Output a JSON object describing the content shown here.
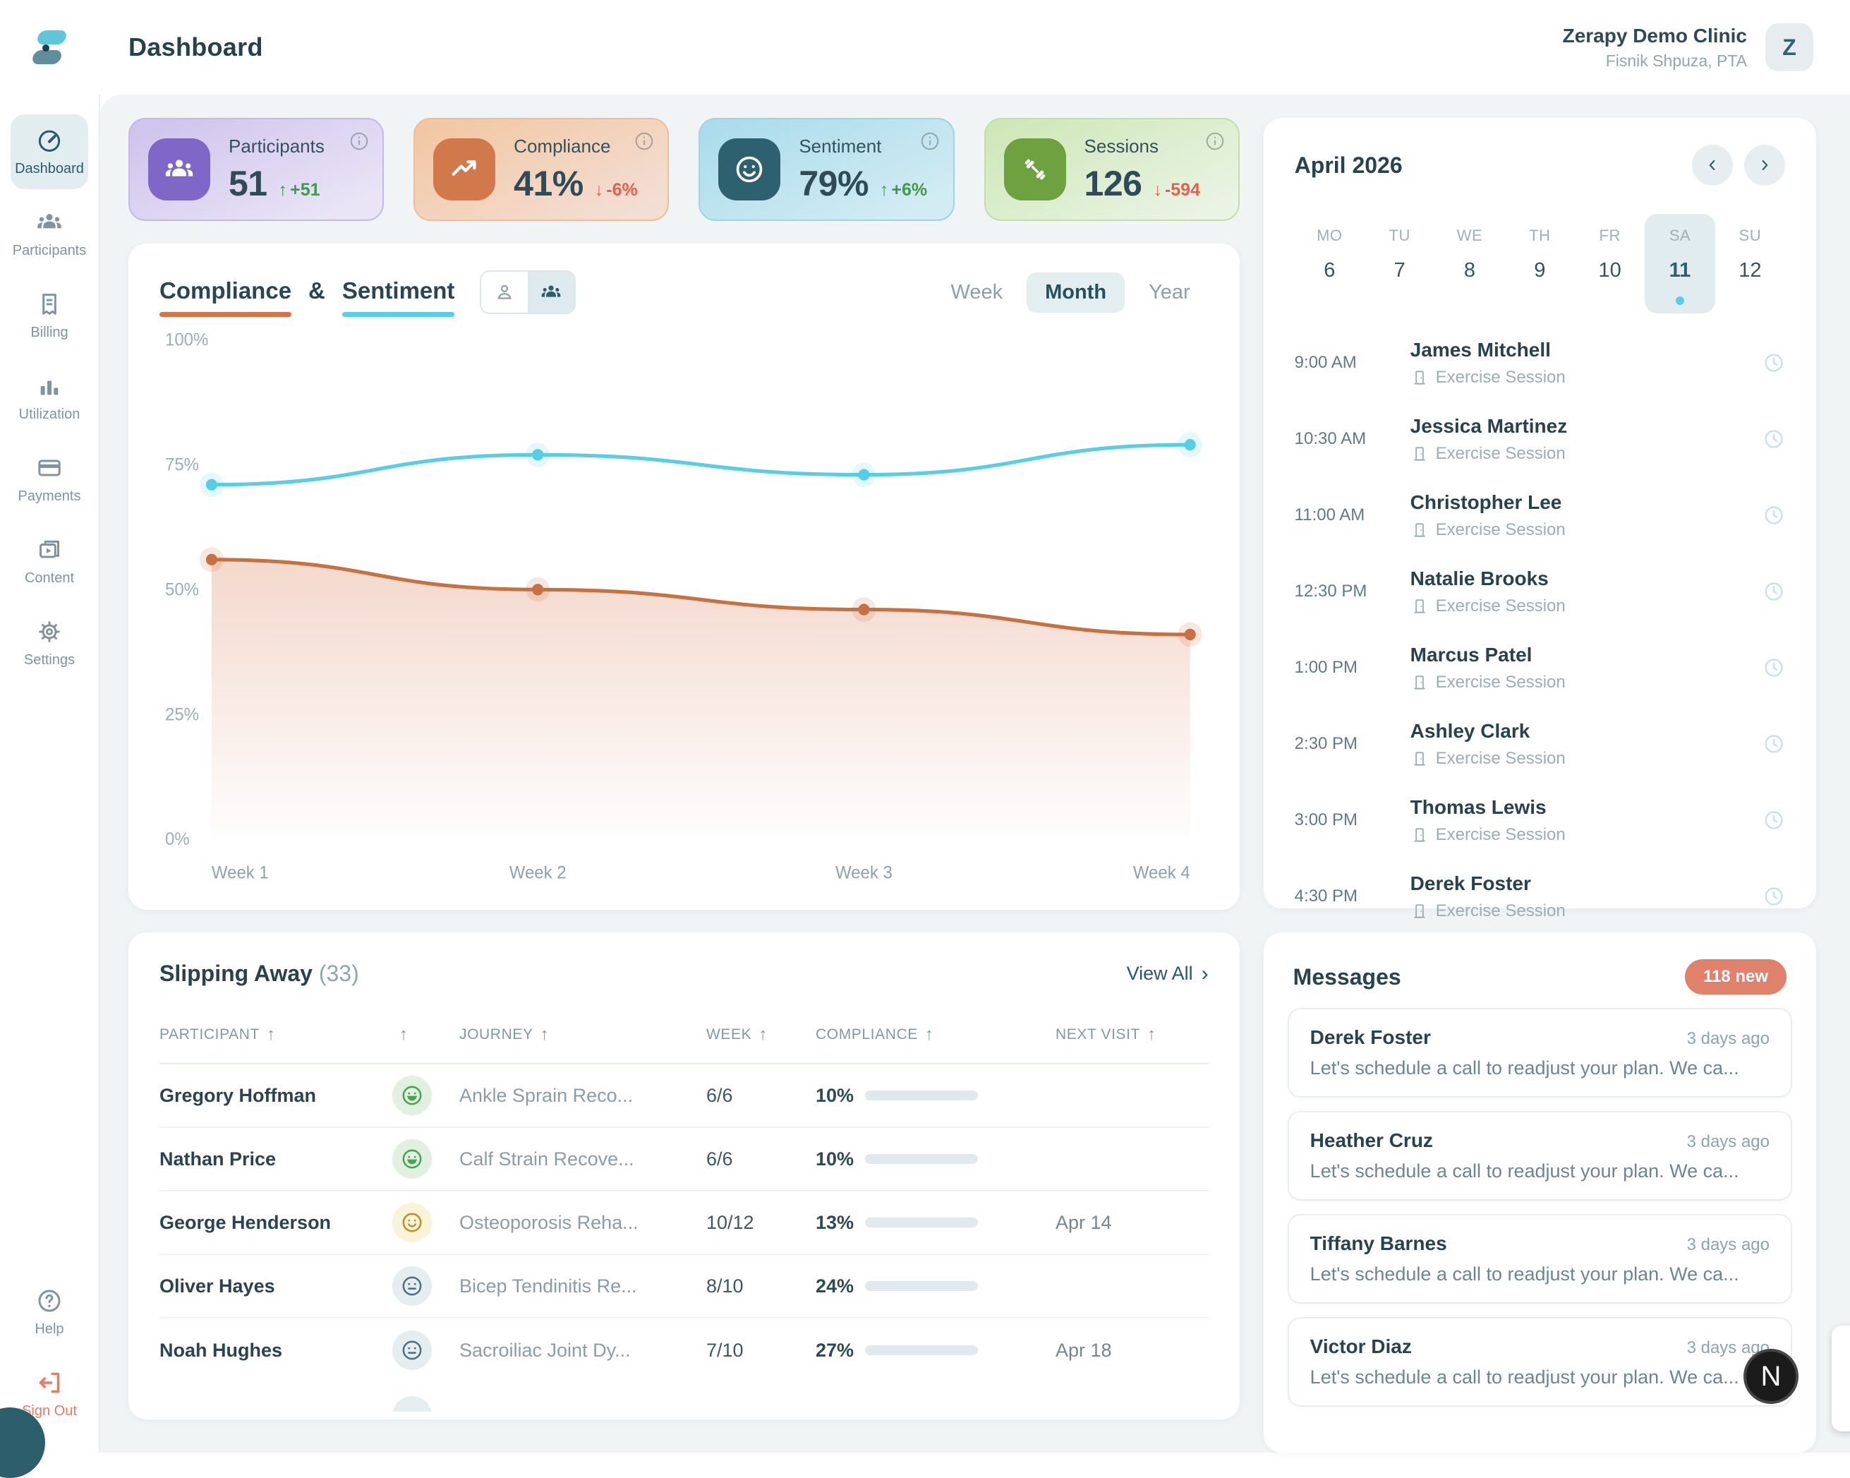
{
  "header": {
    "title": "Dashboard",
    "clinic_name": "Zerapy Demo Clinic",
    "user_name": "Fisnik Shpuza, PTA",
    "avatar_letter": "Z"
  },
  "sidebar": {
    "items": [
      {
        "label": "Dashboard",
        "active": true
      },
      {
        "label": "Participants"
      },
      {
        "label": "Billing"
      },
      {
        "label": "Utilization"
      },
      {
        "label": "Payments"
      },
      {
        "label": "Content"
      },
      {
        "label": "Settings"
      }
    ],
    "help_label": "Help",
    "signout_label": "Sign Out"
  },
  "stats": [
    {
      "label": "Participants",
      "value": "51",
      "arrow": "↑",
      "change": "+51",
      "direction": "up"
    },
    {
      "label": "Compliance",
      "value": "41%",
      "arrow": "↓",
      "change": "-6%",
      "direction": "down"
    },
    {
      "label": "Sentiment",
      "value": "79%",
      "arrow": "↑",
      "change": "+6%",
      "direction": "up"
    },
    {
      "label": "Sessions",
      "value": "126",
      "arrow": "↓",
      "change": "-594",
      "direction": "down"
    }
  ],
  "chart_card": {
    "tab_compliance": "Compliance",
    "amp": "&",
    "tab_sentiment": "Sentiment",
    "range_week": "Week",
    "range_month": "Month",
    "range_year": "Year",
    "active_range": "Month"
  },
  "chart_data": {
    "type": "line",
    "x": [
      "Week 1",
      "Week 2",
      "Week 3",
      "Week 4"
    ],
    "yticks": [
      "100%",
      "75%",
      "50%",
      "25%",
      "0%"
    ],
    "ylim": [
      0,
      100
    ],
    "grid": false,
    "legend_position": "none",
    "series": [
      {
        "name": "Sentiment",
        "color": "#55cee8",
        "area": false,
        "values": [
          71,
          77,
          73,
          79
        ]
      },
      {
        "name": "Compliance",
        "color": "#c8703f",
        "area": true,
        "values": [
          56,
          50,
          46,
          41
        ]
      }
    ]
  },
  "slipping": {
    "title": "Slipping Away",
    "count": "(33)",
    "view_all": "View All",
    "view_all_chevron": "›",
    "sort_arrow": "↑",
    "columns": [
      {
        "label": "PARTICIPANT"
      },
      {
        "label": ""
      },
      {
        "label": "JOURNEY"
      },
      {
        "label": "WEEK"
      },
      {
        "label": "COMPLIANCE"
      },
      {
        "label": "NEXT VISIT"
      }
    ],
    "rows": [
      {
        "name": "Gregory Hoffman",
        "mood": "happy",
        "journey": "Ankle Sprain Reco...",
        "week": "6/6",
        "compliance": "10%",
        "pct": 10,
        "next_visit": ""
      },
      {
        "name": "Nathan Price",
        "mood": "happy",
        "journey": "Calf Strain Recove...",
        "week": "6/6",
        "compliance": "10%",
        "pct": 10,
        "next_visit": ""
      },
      {
        "name": "George Henderson",
        "mood": "okay",
        "journey": "Osteoporosis Reha...",
        "week": "10/12",
        "compliance": "13%",
        "pct": 13,
        "next_visit": "Apr 14"
      },
      {
        "name": "Oliver Hayes",
        "mood": "neutral",
        "journey": "Bicep Tendinitis Re...",
        "week": "8/10",
        "compliance": "24%",
        "pct": 24,
        "next_visit": ""
      },
      {
        "name": "Noah Hughes",
        "mood": "neutral",
        "journey": "Sacroiliac Joint Dy...",
        "week": "7/10",
        "compliance": "27%",
        "pct": 27,
        "next_visit": "Apr 18"
      }
    ]
  },
  "calendar": {
    "month": "April 2026",
    "prev": "‹",
    "next": "›",
    "days": [
      {
        "dow": "MO",
        "num": "6",
        "state": ""
      },
      {
        "dow": "TU",
        "num": "7",
        "state": ""
      },
      {
        "dow": "WE",
        "num": "8",
        "state": ""
      },
      {
        "dow": "TH",
        "num": "9",
        "state": ""
      },
      {
        "dow": "FR",
        "num": "10",
        "state": ""
      },
      {
        "dow": "SA",
        "num": "11",
        "state": "selected"
      },
      {
        "dow": "SU",
        "num": "12",
        "state": ""
      }
    ]
  },
  "schedule": {
    "items": [
      {
        "time": "9:00 AM",
        "name": "James Mitchell",
        "type": "Exercise Session"
      },
      {
        "time": "10:30 AM",
        "name": "Jessica Martinez",
        "type": "Exercise Session"
      },
      {
        "time": "11:00 AM",
        "name": "Christopher Lee",
        "type": "Exercise Session"
      },
      {
        "time": "12:30 PM",
        "name": "Natalie Brooks",
        "type": "Exercise Session"
      },
      {
        "time": "1:00 PM",
        "name": "Marcus Patel",
        "type": "Exercise Session"
      },
      {
        "time": "2:30 PM",
        "name": "Ashley Clark",
        "type": "Exercise Session"
      },
      {
        "time": "3:00 PM",
        "name": "Thomas Lewis",
        "type": "Exercise Session"
      },
      {
        "time": "4:30 PM",
        "name": "Derek Foster",
        "type": "Exercise Session"
      }
    ]
  },
  "messages": {
    "title": "Messages",
    "badge": "118 new",
    "items": [
      {
        "name": "Derek Foster",
        "time": "3 days ago",
        "text": "Let's schedule a call to readjust your plan. We ca..."
      },
      {
        "name": "Heather Cruz",
        "time": "3 days ago",
        "text": "Let's schedule a call to readjust your plan. We ca..."
      },
      {
        "name": "Tiffany Barnes",
        "time": "3 days ago",
        "text": "Let's schedule a call to readjust your plan. We ca..."
      },
      {
        "name": "Victor Diaz",
        "time": "3 days ago",
        "text": "Let's schedule a call to readjust your plan. We ca..."
      }
    ]
  },
  "misc": {
    "dev_button": "N",
    "colors": {
      "accent_teal": "#2e6170",
      "accent_cyan": "#55cee8",
      "accent_orange": "#d5744b",
      "salmon": "#e0826b",
      "positive": "#3f9b49",
      "negative": "#e2604c"
    }
  }
}
